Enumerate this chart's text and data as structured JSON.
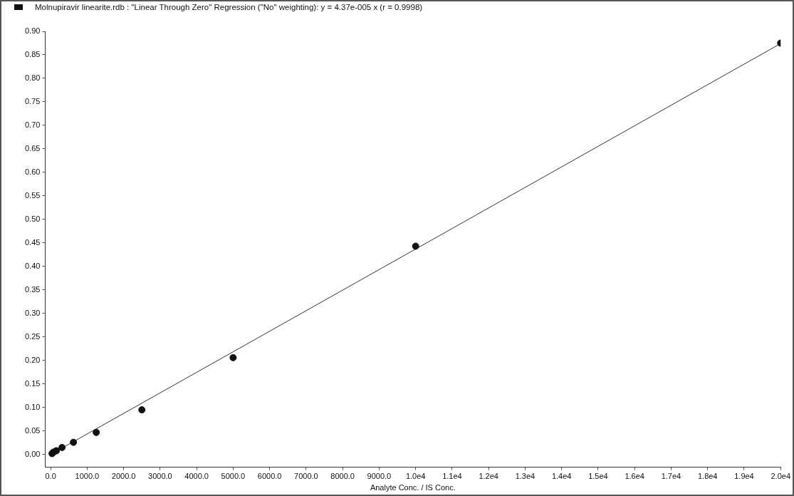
{
  "chart_data": {
    "type": "scatter",
    "title": "Molnupiravir linearite.rdb : \"Linear Through Zero\" Regression (\"No\" weighting): y = 4.37e-005 x (r = 0.9998)",
    "xlabel": "Analyte Conc. / IS Conc.",
    "x": [
      39,
      78,
      156,
      312.5,
      625,
      1250,
      2500,
      5000,
      10000,
      20000
    ],
    "series": [
      {
        "type": "scatter",
        "color": "#111111",
        "marker": "circle",
        "values": [
          0.002,
          0.005,
          0.008,
          0.015,
          0.026,
          0.047,
          0.095,
          0.206,
          0.443,
          0.875
        ]
      },
      {
        "type": "line",
        "color": "#333333",
        "x": [
          0,
          20000
        ],
        "values": [
          0,
          0.874
        ],
        "marker": "none",
        "line_style": "solid"
      }
    ],
    "xlim": [
      -150,
      20000
    ],
    "xticks": [
      {
        "value": 0,
        "label": "0.0"
      },
      {
        "value": 1000,
        "label": "1000.0"
      },
      {
        "value": 2000,
        "label": "2000.0"
      },
      {
        "value": 3000,
        "label": "3000.0"
      },
      {
        "value": 4000,
        "label": "4000.0"
      },
      {
        "value": 5000,
        "label": "5000.0"
      },
      {
        "value": 6000,
        "label": "6000.0"
      },
      {
        "value": 7000,
        "label": "7000.0"
      },
      {
        "value": 8000,
        "label": "8000.0"
      },
      {
        "value": 9000,
        "label": "9000.0"
      },
      {
        "value": 10000,
        "label": "1.0e4"
      },
      {
        "value": 11000,
        "label": "1.1e4"
      },
      {
        "value": 12000,
        "label": "1.2e4"
      },
      {
        "value": 13000,
        "label": "1.3e4"
      },
      {
        "value": 14000,
        "label": "1.4e4"
      },
      {
        "value": 15000,
        "label": "1.5e4"
      },
      {
        "value": 16000,
        "label": "1.6e4"
      },
      {
        "value": 17000,
        "label": "1.7e4"
      },
      {
        "value": 18000,
        "label": "1.8e4"
      },
      {
        "value": 19000,
        "label": "1.9e4"
      },
      {
        "value": 20000,
        "label": "2.0e4"
      }
    ],
    "ylim": [
      -0.027,
      0.9
    ],
    "yticks": [
      {
        "value": 0,
        "label": "0.00"
      },
      {
        "value": 0.05,
        "label": "0.05"
      },
      {
        "value": 0.1,
        "label": "0.10"
      },
      {
        "value": 0.15,
        "label": "0.15"
      },
      {
        "value": 0.2,
        "label": "0.20"
      },
      {
        "value": 0.25,
        "label": "0.25"
      },
      {
        "value": 0.3,
        "label": "0.30"
      },
      {
        "value": 0.35,
        "label": "0.35"
      },
      {
        "value": 0.4,
        "label": "0.40"
      },
      {
        "value": 0.45,
        "label": "0.45"
      },
      {
        "value": 0.5,
        "label": "0.50"
      },
      {
        "value": 0.55,
        "label": "0.55"
      },
      {
        "value": 0.6,
        "label": "0.60"
      },
      {
        "value": 0.65,
        "label": "0.65"
      },
      {
        "value": 0.7,
        "label": "0.70"
      },
      {
        "value": 0.75,
        "label": "0.75"
      },
      {
        "value": 0.8,
        "label": "0.80"
      },
      {
        "value": 0.85,
        "label": "0.85"
      },
      {
        "value": 0.9,
        "label": "0.90"
      }
    ],
    "grid": false,
    "legend": false
  }
}
